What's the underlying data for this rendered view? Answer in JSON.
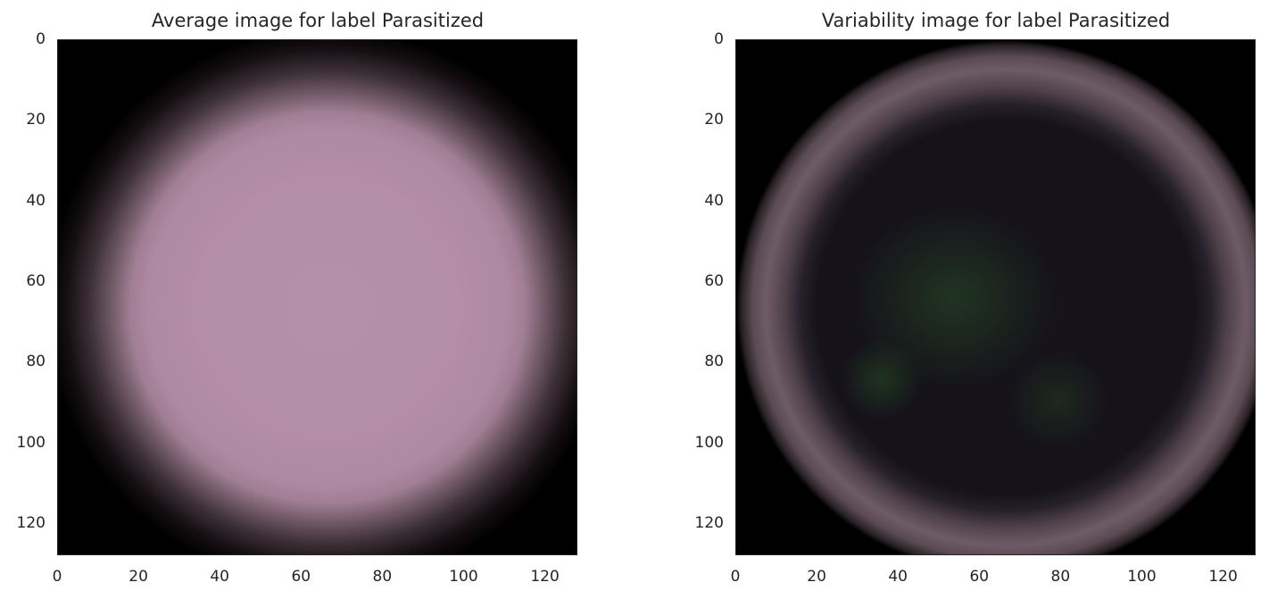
{
  "chart_data": [
    {
      "type": "heatmap",
      "title": "Average image for label Parasitized",
      "image_size": [
        128,
        128
      ],
      "xlim": [
        0,
        128
      ],
      "ylim": [
        128,
        0
      ],
      "x_ticks": [
        "0",
        "20",
        "40",
        "60",
        "80",
        "100",
        "120"
      ],
      "y_ticks": [
        "0",
        "20",
        "40",
        "60",
        "80",
        "100",
        "120"
      ],
      "grid": false,
      "colors": {
        "center": "#b690aa",
        "edge": "#000000"
      }
    },
    {
      "type": "heatmap",
      "title": "Variability image for label Parasitized",
      "image_size": [
        128,
        128
      ],
      "xlim": [
        0,
        128
      ],
      "ylim": [
        128,
        0
      ],
      "x_ticks": [
        "0",
        "20",
        "40",
        "60",
        "80",
        "100",
        "120"
      ],
      "y_ticks": [
        "0",
        "20",
        "40",
        "60",
        "80",
        "100",
        "120"
      ],
      "grid": false,
      "colors": {
        "center": "#16131a",
        "ring": "#6e5b66",
        "edge": "#000000",
        "spots": "#2c5a2c"
      }
    }
  ]
}
